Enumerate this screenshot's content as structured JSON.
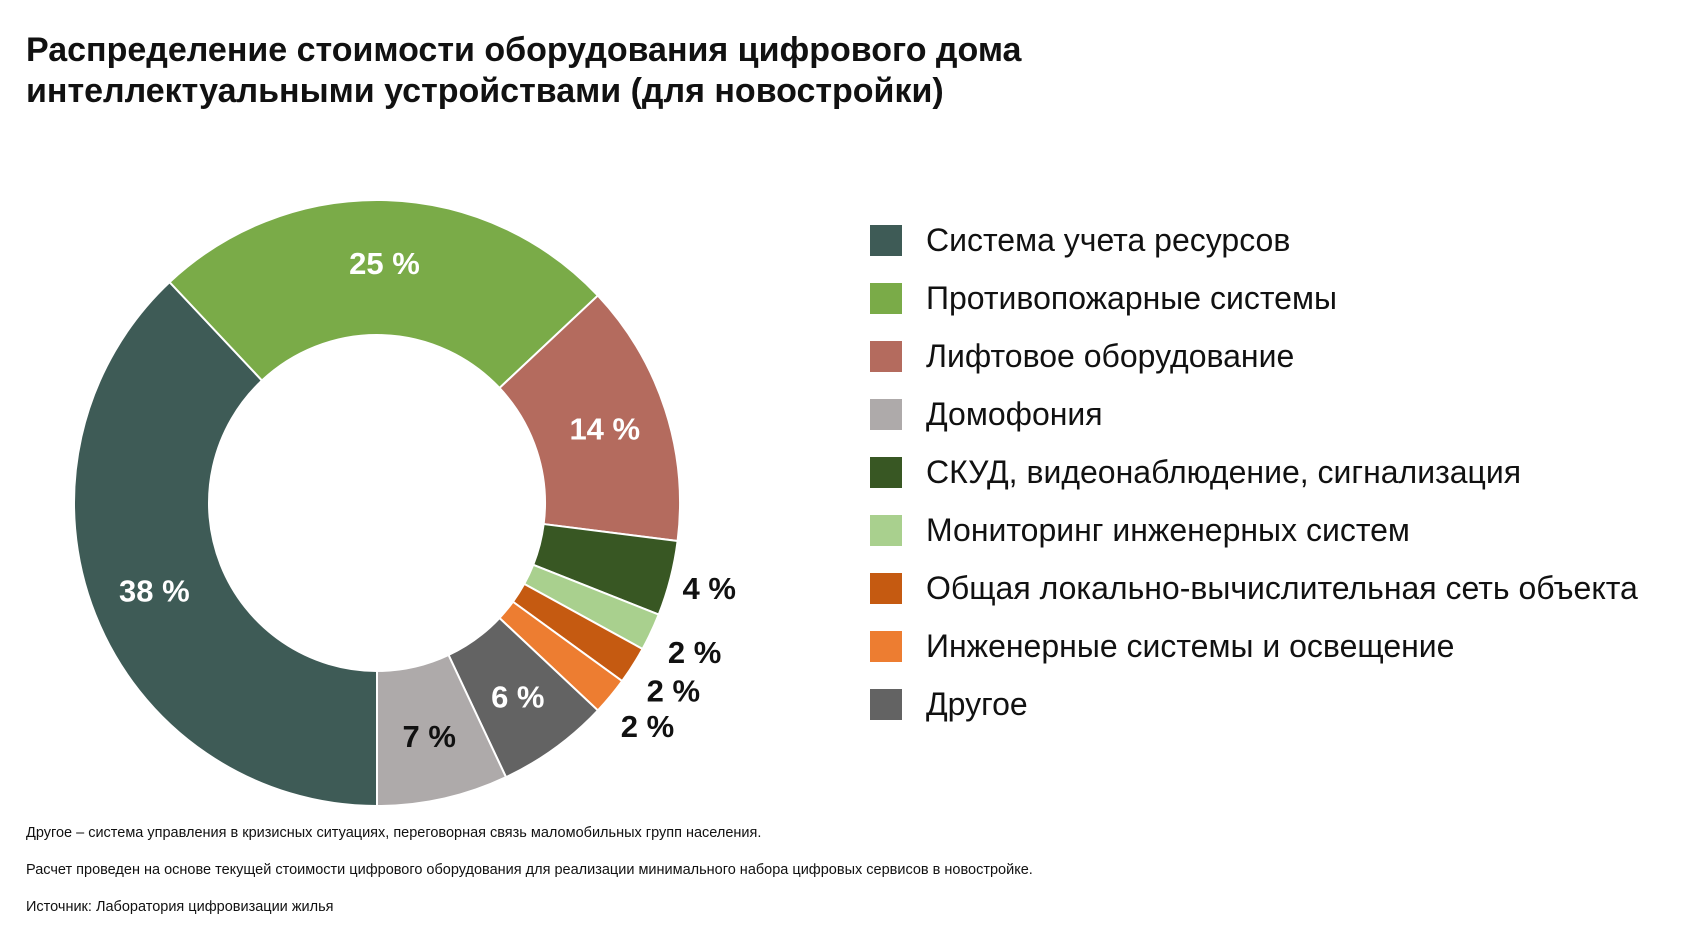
{
  "title_lines": [
    "Распределение стоимости оборудования цифрового дома",
    "интеллектуальными устройствами (для новостройки)"
  ],
  "chart_data": {
    "type": "pie",
    "donut": true,
    "title": "Распределение стоимости оборудования цифрового дома интеллектуальными устройствами (для новостройки)",
    "legend_position": "right",
    "slices": [
      {
        "name": "Система учета ресурсов",
        "value": 38,
        "label": "38 %",
        "color": "#3e5b56",
        "label_color": "#ffffff"
      },
      {
        "name": "Противопожарные системы",
        "value": 25,
        "label": "25 %",
        "color": "#7aab48",
        "label_color": "#ffffff"
      },
      {
        "name": "Лифтовое оборудование",
        "value": 14,
        "label": "14 %",
        "color": "#b46b5e",
        "label_color": "#ffffff"
      },
      {
        "name": "СКУД, видеонаблюдение, сигнализация",
        "value": 4,
        "label": "4 %",
        "color": "#385723",
        "label_color": "#111111"
      },
      {
        "name": "Мониторинг инженерных систем",
        "value": 2,
        "label": "2 %",
        "color": "#a9d08e",
        "label_color": "#111111"
      },
      {
        "name": "Общая локально-вычислительная сеть объекта",
        "value": 2,
        "label": "2 %",
        "color": "#c55a11",
        "label_color": "#111111"
      },
      {
        "name": "Инженерные системы и освещение",
        "value": 2,
        "label": "2 %",
        "color": "#ed7d31",
        "label_color": "#111111"
      },
      {
        "name": "Другое",
        "value": 6,
        "label": "6 %",
        "color": "#636363",
        "label_color": "#ffffff"
      },
      {
        "name": "Домофония",
        "value": 7,
        "label": "7 %",
        "color": "#aeaaaa",
        "label_color": "#111111"
      }
    ],
    "legend": [
      {
        "label": "Система учета ресурсов",
        "color": "#3e5b56"
      },
      {
        "label": "Противопожарные системы",
        "color": "#7aab48"
      },
      {
        "label": "Лифтовое оборудование",
        "color": "#b46b5e"
      },
      {
        "label": "Домофония",
        "color": "#aeaaaa"
      },
      {
        "label": "СКУД, видеонаблюдение, сигнализация",
        "color": "#385723"
      },
      {
        "label": "Мониторинг инженерных систем",
        "color": "#a9d08e"
      },
      {
        "label": "Общая локально-вычислительная сеть объекта",
        "color": "#c55a11"
      },
      {
        "label": "Инженерные системы и освещение",
        "color": "#ed7d31"
      },
      {
        "label": "Другое",
        "color": "#636363"
      }
    ]
  },
  "notes": {
    "other": "Другое – система управления в кризисных ситуациях, переговорная связь маломобильных групп населения.",
    "calc": "Расчет проведен на основе текущей стоимости цифрового оборудования для реализации минимального набора цифровых сервисов в новостройке.",
    "source": "Источник: Лаборатория цифровизации жилья"
  }
}
